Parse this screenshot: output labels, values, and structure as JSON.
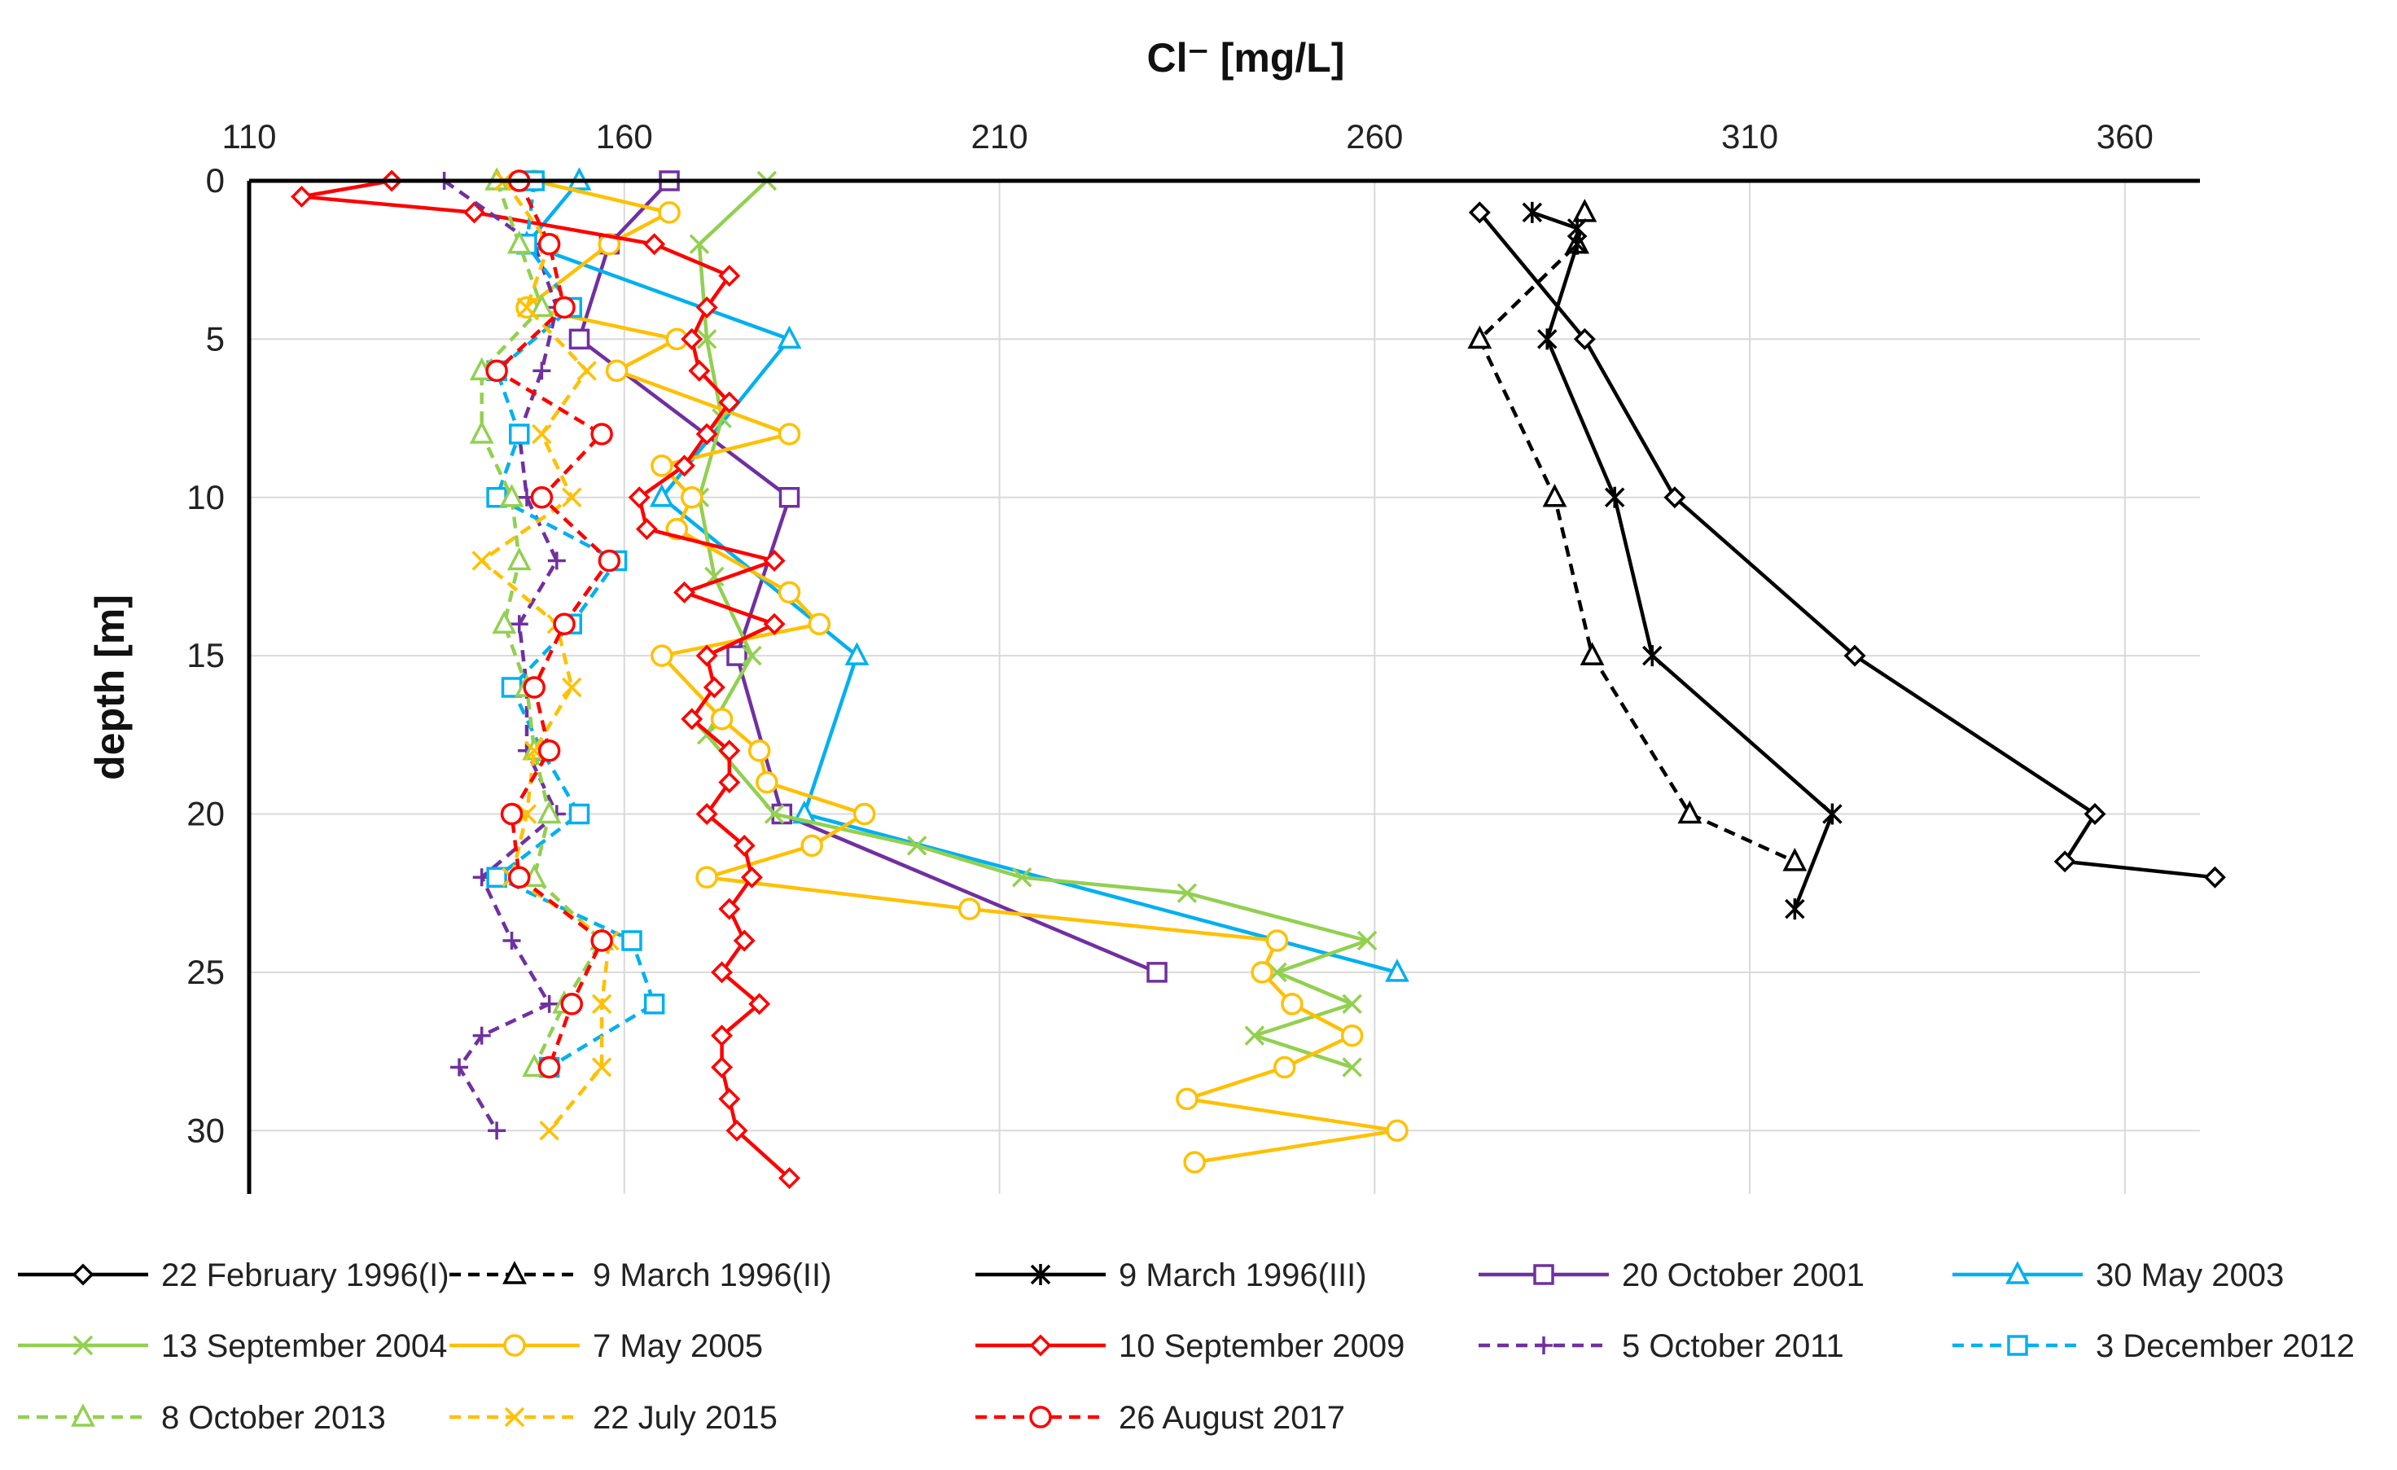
{
  "chart_data": {
    "type": "line",
    "xlabel": "Cl⁻ [mg/L]",
    "ylabel": "depth [m]",
    "xlim": [
      110,
      370
    ],
    "ylim": [
      32,
      0
    ],
    "x_ticks": [
      110,
      160,
      210,
      260,
      310,
      360
    ],
    "y_ticks": [
      0,
      5,
      10,
      15,
      20,
      25,
      30
    ],
    "grid": "vertical and horizontal",
    "x_axis_position": "top",
    "legend_position": "bottom",
    "series": [
      {
        "name": "22 February 1996(I)",
        "color": "#000000",
        "dash": "solid",
        "marker": "diamond",
        "x": [
          274,
          288,
          300,
          324,
          356,
          352,
          372
        ],
        "y": [
          1,
          5,
          10,
          15,
          20,
          21.5,
          22
        ]
      },
      {
        "name": "9 March 1996(II)",
        "color": "#000000",
        "dash": "dashed",
        "marker": "triangle",
        "x": [
          288,
          287,
          274,
          284,
          289,
          302,
          316
        ],
        "y": [
          1,
          2,
          5,
          10,
          15,
          20,
          21.5
        ]
      },
      {
        "name": "9 March 1996(III)",
        "color": "#000000",
        "dash": "solid",
        "marker": "asterisk",
        "x": [
          281,
          287,
          287,
          283,
          292,
          297,
          321,
          316
        ],
        "y": [
          1,
          1.5,
          2,
          5,
          10,
          15,
          20,
          23
        ]
      },
      {
        "name": "20 October 2001",
        "color": "#7030A0",
        "dash": "solid",
        "marker": "square",
        "x": [
          166,
          158,
          154,
          182,
          175,
          181,
          231
        ],
        "y": [
          0,
          2,
          5,
          10,
          15,
          20,
          25
        ]
      },
      {
        "name": "30 May 2003",
        "color": "#00B0F0",
        "dash": "solid",
        "marker": "triangle",
        "x": [
          154,
          147,
          182,
          165,
          191,
          184,
          263
        ],
        "y": [
          0,
          2,
          5,
          10,
          15,
          20,
          25
        ]
      },
      {
        "name": "13 September 2004",
        "color": "#92D050",
        "dash": "solid",
        "marker": "x",
        "x": [
          179,
          170,
          171,
          173,
          170,
          172,
          177,
          171,
          180,
          199,
          213,
          235,
          259,
          247,
          257,
          244,
          257
        ],
        "y": [
          0,
          2,
          5,
          7.5,
          10,
          12.5,
          15,
          17.5,
          20,
          21,
          22,
          22.5,
          24,
          25,
          26,
          27,
          28
        ]
      },
      {
        "name": "7 May 2005",
        "color": "#FFC000",
        "dash": "solid",
        "marker": "circle",
        "x": [
          148,
          166,
          158,
          147,
          167,
          159,
          182,
          165,
          169,
          167,
          182,
          186,
          165,
          173,
          178,
          179,
          192,
          185,
          171,
          206,
          247,
          245,
          249,
          257,
          248,
          235,
          263,
          236
        ],
        "y": [
          0,
          1,
          2,
          4,
          5,
          6,
          8,
          9,
          10,
          11,
          13,
          14,
          15,
          17,
          18,
          19,
          20,
          21,
          22,
          23,
          24,
          25,
          26,
          27,
          28,
          29,
          30,
          31
        ]
      },
      {
        "name": "10 September 2009",
        "color": "#FF0000",
        "dash": "solid",
        "marker": "diamond",
        "x": [
          129,
          117,
          140,
          164,
          174,
          171,
          169,
          170,
          174,
          171,
          168,
          162,
          163,
          180,
          168,
          180,
          171,
          172,
          169,
          174,
          174,
          171,
          176,
          177,
          174,
          176,
          173,
          178,
          173,
          173,
          174,
          175,
          182
        ],
        "y": [
          0,
          0.5,
          1,
          2,
          3,
          4,
          5,
          6,
          7,
          8,
          9,
          10,
          11,
          12,
          13,
          14,
          15,
          16,
          17,
          18,
          19,
          20,
          21,
          22,
          23,
          24,
          25,
          26,
          27,
          28,
          29,
          30,
          31.5
        ]
      },
      {
        "name": "5 October 2011",
        "color": "#7030A0",
        "dash": "dashed",
        "marker": "plus",
        "x": [
          136,
          148,
          151,
          149,
          146,
          147,
          151,
          146,
          147,
          147,
          151,
          141,
          145,
          150,
          141,
          138,
          143
        ],
        "y": [
          0,
          2,
          4,
          6,
          8,
          10,
          12,
          14,
          16,
          18,
          20,
          22,
          24,
          26,
          27,
          28,
          30
        ]
      },
      {
        "name": "3 December 2012",
        "color": "#00B0F0",
        "dash": "dashed",
        "marker": "square",
        "x": [
          148,
          147,
          153,
          143,
          146,
          143,
          159,
          153,
          145,
          149,
          154,
          143,
          161,
          164,
          150
        ],
        "y": [
          0,
          2,
          4,
          6,
          8,
          10,
          12,
          14,
          16,
          18,
          20,
          22,
          24,
          26,
          28
        ]
      },
      {
        "name": "8 October 2013",
        "color": "#92D050",
        "dash": "dashed",
        "marker": "triangle",
        "x": [
          143,
          146,
          149,
          141,
          141,
          145,
          146,
          144,
          147,
          148,
          150,
          148,
          157,
          152,
          148
        ],
        "y": [
          0,
          2,
          4,
          6,
          8,
          10,
          12,
          14,
          16,
          18,
          20,
          22,
          24,
          26,
          28
        ]
      },
      {
        "name": "22 July 2015",
        "color": "#FFC000",
        "dash": "dashed",
        "marker": "x",
        "x": [
          144,
          150,
          147,
          155,
          149,
          153,
          141,
          151,
          153,
          148,
          147,
          145,
          158,
          157,
          157,
          150
        ],
        "y": [
          0,
          2,
          4,
          6,
          8,
          10,
          12,
          14,
          16,
          18,
          20,
          22,
          24,
          26,
          28,
          30
        ]
      },
      {
        "name": "26 August 2017",
        "color": "#FF0000",
        "dash": "dashed",
        "marker": "circle",
        "x": [
          146,
          150,
          152,
          143,
          157,
          149,
          158,
          152,
          148,
          150,
          145,
          146,
          157,
          153,
          150
        ],
        "y": [
          0,
          2,
          4,
          6,
          8,
          10,
          12,
          14,
          16,
          18,
          20,
          22,
          24,
          26,
          28
        ]
      }
    ]
  }
}
